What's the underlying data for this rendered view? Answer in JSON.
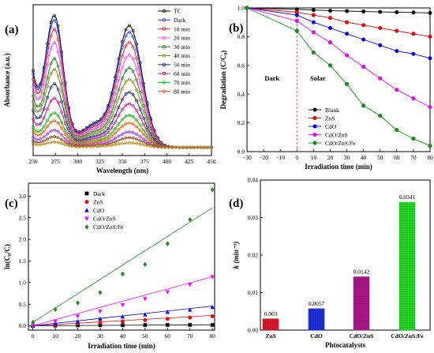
{
  "chart_data": [
    {
      "panel": "(a)",
      "type": "line",
      "xlabel": "Wavelength (nm)",
      "ylabel": "Absorbance (a.u.)",
      "xlim": [
        250,
        450
      ],
      "xticks": [
        "250",
        "275",
        "300",
        "325",
        "350",
        "375",
        "400",
        "425",
        "450"
      ],
      "grid": false,
      "legend_position": "top-right",
      "series": [
        {
          "name": "TC",
          "color": "#000000",
          "peak1": 1.0,
          "peak2": 0.95
        },
        {
          "name": "Dark",
          "color": "#1f3fff",
          "peak1": 0.96,
          "peak2": 0.9
        },
        {
          "name": "10 min",
          "color": "#ff2020",
          "peak1": 0.89,
          "peak2": 0.82
        },
        {
          "name": "20 min",
          "color": "#ff40ff",
          "peak1": 0.79,
          "peak2": 0.72
        },
        {
          "name": "30 min",
          "color": "#208020",
          "peak1": 0.67,
          "peak2": 0.62
        },
        {
          "name": "40 min",
          "color": "#8b8b1a",
          "peak1": 0.59,
          "peak2": 0.53
        },
        {
          "name": "50 min",
          "color": "#1a237e",
          "peak1": 0.48,
          "peak2": 0.43
        },
        {
          "name": "60 min",
          "color": "#c71585",
          "peak1": 0.37,
          "peak2": 0.34
        },
        {
          "name": "70 min",
          "color": "#00c000",
          "peak1": 0.26,
          "peak2": 0.25
        },
        {
          "name": "80 min",
          "color": "#ff5500",
          "peak1": 0.2,
          "peak2": 0.19
        },
        {
          "name": "",
          "color": "#9b30ff",
          "peak1": 0.13,
          "peak2": 0.12
        },
        {
          "name": "",
          "color": "#8b4513",
          "peak1": 0.08,
          "peak2": 0.075
        },
        {
          "name": "",
          "color": "#b8860b",
          "peak1": 0.04,
          "peak2": 0.035
        }
      ]
    },
    {
      "panel": "(b)",
      "type": "line",
      "xlabel": "Irradiation time (min)",
      "ylabel": "Degradation (C/C₀)",
      "xlim": [
        -30,
        80
      ],
      "ylim": [
        0,
        1.0
      ],
      "xticks": [
        "-30",
        "-20",
        "-10",
        "0",
        "10",
        "20",
        "30",
        "40",
        "50",
        "60",
        "70",
        "80"
      ],
      "yticks": [
        "0.0",
        "0.2",
        "0.4",
        "0.6",
        "0.8",
        "1.0"
      ],
      "annotations": [
        "Dark",
        "Solar"
      ],
      "divider_x": 0,
      "legend_position": "bottom-right",
      "x": [
        -30,
        0,
        10,
        20,
        30,
        40,
        50,
        60,
        70,
        80
      ],
      "series": [
        {
          "name": "Blank",
          "color": "#000000",
          "marker": "circle",
          "values": [
            1.0,
            0.99,
            0.985,
            0.98,
            0.978,
            0.975,
            0.972,
            0.97,
            0.968,
            0.965
          ]
        },
        {
          "name": "ZnS",
          "color": "#ff0000",
          "marker": "circle",
          "values": [
            1.0,
            0.97,
            0.95,
            0.93,
            0.9,
            0.88,
            0.86,
            0.84,
            0.82,
            0.8
          ]
        },
        {
          "name": "CdO",
          "color": "#0000ff",
          "marker": "circle",
          "values": [
            1.0,
            0.95,
            0.9,
            0.86,
            0.82,
            0.78,
            0.74,
            0.7,
            0.68,
            0.65
          ]
        },
        {
          "name": "CdO/ZnS",
          "color": "#ff00ff",
          "marker": "circle",
          "values": [
            1.0,
            0.91,
            0.83,
            0.76,
            0.67,
            0.59,
            0.51,
            0.43,
            0.37,
            0.31
          ]
        },
        {
          "name": "CdO/ZnS:Fe",
          "color": "#0a9a0a",
          "marker": "circle",
          "values": [
            1.0,
            0.84,
            0.69,
            0.6,
            0.47,
            0.32,
            0.25,
            0.15,
            0.09,
            0.04
          ]
        }
      ]
    },
    {
      "panel": "(c)",
      "type": "scatter",
      "xlabel": "Irradiation time (min)",
      "ylabel": "ln(C₀/C)",
      "xlim": [
        -2,
        81
      ],
      "ylim": [
        -0.1,
        3.3
      ],
      "xticks": [
        "0",
        "10",
        "20",
        "30",
        "40",
        "50",
        "60",
        "70",
        "80"
      ],
      "yticks": [
        "0.0",
        "0.5",
        "1.0",
        "1.5",
        "2.0",
        "2.5",
        "3.0"
      ],
      "legend_position": "top-left",
      "x": [
        0,
        10,
        20,
        30,
        40,
        50,
        60,
        70,
        80
      ],
      "series": [
        {
          "name": "Dark",
          "color": "#000000",
          "marker": "square",
          "values": [
            0,
            0.005,
            0.01,
            0.012,
            0.015,
            0.018,
            0.02,
            0.02,
            0.02
          ],
          "fit_slope": 0.0003
        },
        {
          "name": "ZnS",
          "color": "#ff0000",
          "marker": "circle",
          "values": [
            0,
            0.03,
            0.05,
            0.07,
            0.1,
            0.13,
            0.16,
            0.19,
            0.22
          ],
          "fit_slope": 0.003
        },
        {
          "name": "CdO",
          "color": "#0000ff",
          "marker": "triangle-up",
          "values": [
            0,
            0.06,
            0.1,
            0.16,
            0.21,
            0.26,
            0.32,
            0.37,
            0.43
          ],
          "fit_slope": 0.0057
        },
        {
          "name": "CdO/ZnS",
          "color": "#ff00ff",
          "marker": "triangle-down",
          "values": [
            0,
            0.1,
            0.22,
            0.33,
            0.48,
            0.62,
            0.78,
            0.95,
            1.13
          ],
          "fit_slope": 0.0142
        },
        {
          "name": "CdO/ZnS:Fe",
          "color": "#228b22",
          "marker": "diamond",
          "values": [
            0.08,
            0.38,
            0.53,
            0.77,
            1.2,
            1.42,
            1.9,
            2.46,
            3.15
          ],
          "fit_slope": 0.0341
        }
      ]
    },
    {
      "panel": "(d)",
      "type": "bar",
      "xlabel": "Phtocatalysts",
      "ylabel": "k (min⁻¹)",
      "ylim": [
        0,
        0.04
      ],
      "yticks": [
        "0.00",
        "0.01",
        "0.02",
        "0.03",
        "0.04"
      ],
      "categories": [
        "ZnS",
        "CdO",
        "CdO/ZnS",
        "CdO/ZnS:Fe"
      ],
      "values": [
        0.003,
        0.0057,
        0.0142,
        0.0341
      ],
      "value_labels": [
        "0.003",
        "0.0057",
        "0.0142",
        "0.0341"
      ],
      "colors": [
        "#e0142a",
        "#1a2ee0",
        "#b0148c",
        "#22dd22"
      ]
    }
  ]
}
